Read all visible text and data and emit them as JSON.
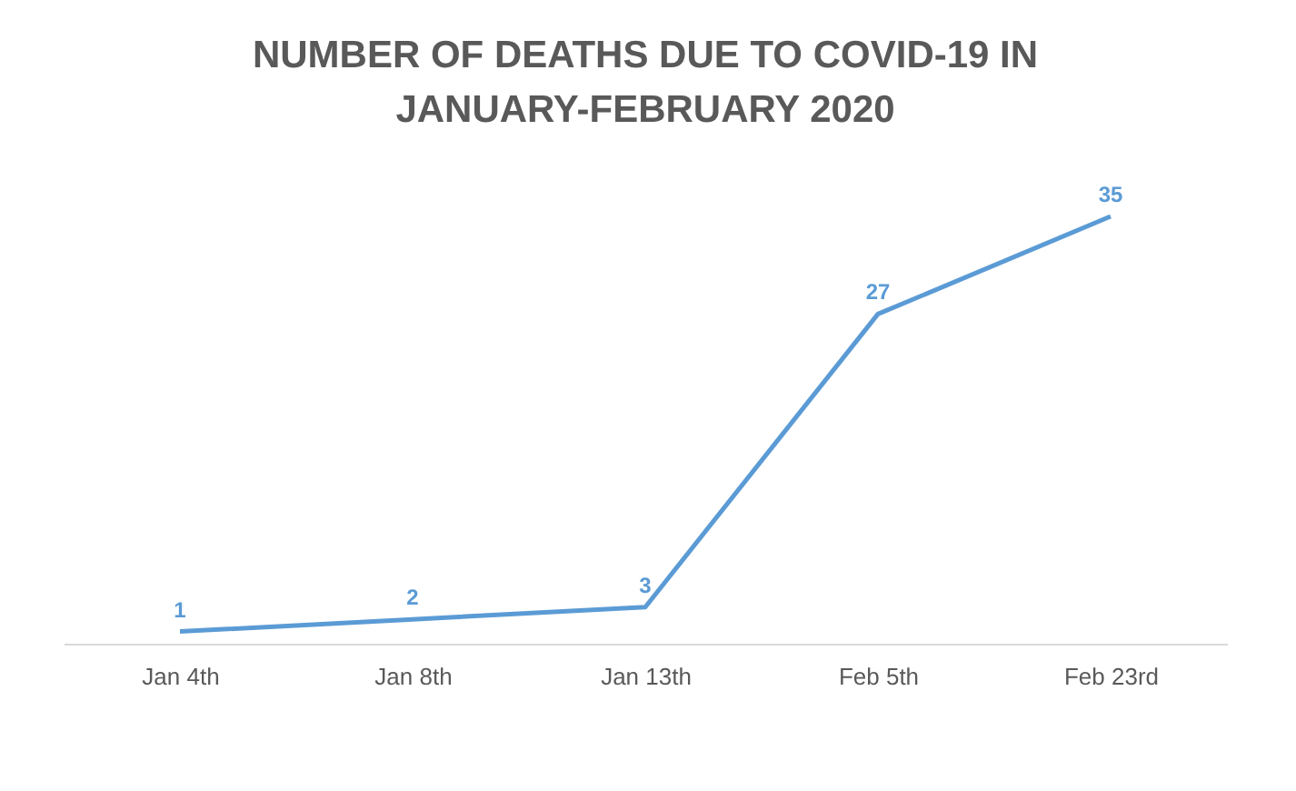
{
  "chart_data": {
    "type": "line",
    "title": "NUMBER OF DEATHS DUE TO COVID-19 IN JANUARY-FEBRUARY 2020",
    "categories": [
      "Jan 4th",
      "Jan 8th",
      "Jan 13th",
      "Feb 5th",
      "Feb 23rd"
    ],
    "series": [
      {
        "color": "#5b9bd5",
        "values": [
          1,
          2,
          3,
          27,
          35
        ]
      }
    ],
    "data_labels": true,
    "marker": "none",
    "tick_labels": "x",
    "legend": false,
    "grid": false
  }
}
